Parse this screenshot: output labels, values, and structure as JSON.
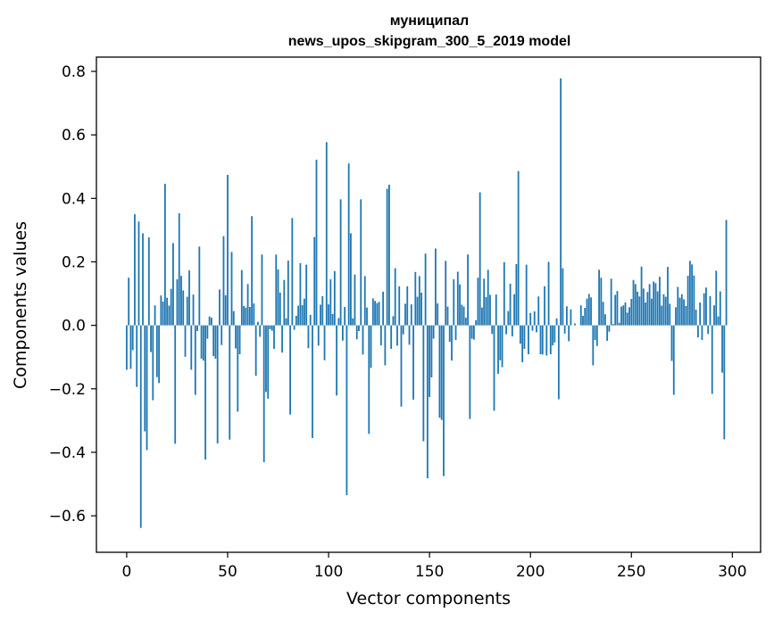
{
  "chart_data": {
    "type": "bar",
    "title": "муниципал",
    "subtitle": "news_upos_skipgram_300_5_2019 model",
    "xlabel": "Vector components",
    "ylabel": "Components values",
    "xlim": [
      -15,
      314
    ],
    "ylim": [
      -0.715,
      0.845
    ],
    "xticks": [
      0,
      50,
      100,
      150,
      200,
      250,
      300
    ],
    "yticks": [
      -0.6,
      -0.4,
      -0.2,
      0.0,
      0.2,
      0.4,
      0.6,
      0.8
    ],
    "ytick_labels": [
      "−0.6",
      "−0.4",
      "−0.2",
      "0.0",
      "0.2",
      "0.4",
      "0.6",
      "0.8"
    ],
    "grid": false,
    "color": "#1f77b4",
    "values": [
      -0.14,
      0.15,
      -0.137,
      -0.078,
      0.35,
      -0.194,
      0.327,
      -0.638,
      0.29,
      -0.334,
      -0.393,
      0.277,
      -0.084,
      -0.236,
      0.063,
      -0.163,
      -0.182,
      0.094,
      0.075,
      0.446,
      0.087,
      0.062,
      0.115,
      0.259,
      -0.373,
      0.145,
      0.353,
      0.156,
      0.11,
      -0.099,
      0.09,
      0.173,
      -0.14,
      0.097,
      -0.219,
      -0.018,
      0.248,
      -0.105,
      -0.111,
      -0.423,
      -0.042,
      0.028,
      0.024,
      -0.097,
      -0.105,
      -0.372,
      0.113,
      -0.062,
      0.281,
      0.095,
      0.474,
      -0.36,
      0.231,
      0.045,
      -0.073,
      -0.272,
      -0.091,
      0.174,
      0.061,
      0.056,
      0.13,
      0.058,
      0.344,
      0.069,
      -0.159,
      0.011,
      -0.036,
      0.223,
      -0.431,
      -0.21,
      -0.231,
      -0.012,
      -0.017,
      -0.074,
      0.223,
      0.176,
      0.103,
      -0.086,
      0.143,
      0.022,
      0.204,
      -0.281,
      0.338,
      -0.014,
      0.03,
      0.062,
      0.196,
      0.064,
      0.084,
      0.191,
      -0.072,
      0.033,
      -0.355,
      0.278,
      0.522,
      -0.064,
      0.065,
      0.092,
      -0.11,
      0.577,
      0.066,
      0.145,
      0.036,
      0.171,
      -0.221,
      0.023,
      0.397,
      -0.048,
      0.058,
      -0.535,
      0.51,
      0.29,
      0.022,
      0.16,
      -0.044,
      -0.018,
      0.397,
      -0.092,
      0.155,
      0.056,
      -0.342,
      -0.134,
      0.085,
      0.077,
      0.07,
      0.074,
      -0.063,
      0.106,
      -0.126,
      0.43,
      0.443,
      -0.074,
      0.029,
      0.18,
      -0.064,
      0.123,
      -0.256,
      -0.028,
      0.068,
      0.123,
      -0.061,
      0.066,
      -0.234,
      0.168,
      0.09,
      0.155,
      0.103,
      -0.365,
      0.226,
      -0.482,
      -0.226,
      -0.164,
      -0.042,
      0.242,
      0.069,
      -0.291,
      -0.298,
      -0.475,
      0.203,
      0.059,
      -0.052,
      -0.111,
      0.145,
      -0.046,
      0.169,
      0.129,
      0.065,
      0.059,
      0.024,
      0.223,
      -0.295,
      -0.042,
      -0.045,
      0.016,
      0.15,
      0.419,
      0.056,
      0.147,
      0.089,
      0.175,
      0.096,
      -0.027,
      -0.269,
      0.097,
      -0.153,
      -0.11,
      -0.132,
      0.199,
      -0.028,
      0.045,
      0.131,
      -0.035,
      0.098,
      0.193,
      0.486,
      -0.058,
      -0.116,
      -0.074,
      0.191,
      -0.091,
      0.039,
      -0.017,
      0.044,
      -0.022,
      0.091,
      -0.091,
      -0.092,
      0.123,
      -0.095,
      0.2,
      -0.091,
      -0.063,
      -0.054,
      0.022,
      -0.233,
      0.778,
      0.18,
      -0.026,
      0.06,
      -0.05,
      0.05,
      0.0,
      0.006,
      0.0,
      0.0,
      0.063,
      0.03,
      0.055,
      0.084,
      0.099,
      0.088,
      -0.126,
      -0.046,
      -0.065,
      0.175,
      0.15,
      0.074,
      0.035,
      -0.049,
      -0.02,
      0.147,
      0.004,
      0.096,
      0.108,
      0.008,
      0.059,
      0.063,
      0.072,
      0.04,
      0.057,
      0.083,
      0.143,
      0.13,
      0.106,
      0.091,
      0.185,
      0.116,
      0.072,
      0.105,
      0.13,
      0.084,
      0.138,
      0.133,
      0.107,
      0.153,
      0.062,
      0.098,
      0.09,
      0.184,
      0.068,
      -0.112,
      -0.219,
      0.057,
      0.121,
      0.087,
      0.098,
      0.082,
      0.061,
      0.156,
      0.203,
      0.192,
      0.157,
      0.049,
      -0.038,
      0.072,
      -0.046,
      0.101,
      0.119,
      -0.027,
      0.092,
      -0.216,
      0.063,
      0.172,
      0.028,
      0.107,
      -0.149,
      -0.359,
      0.332
    ]
  }
}
